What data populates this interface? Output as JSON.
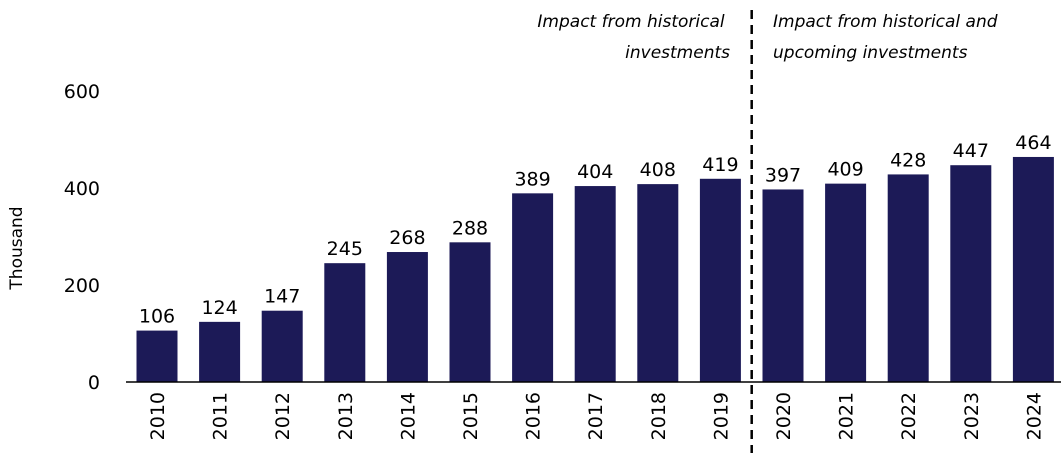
{
  "chart_data": {
    "type": "bar",
    "categories": [
      "2010",
      "2011",
      "2012",
      "2013",
      "2014",
      "2015",
      "2016",
      "2017",
      "2018",
      "2019",
      "2020",
      "2021",
      "2022",
      "2023",
      "2024"
    ],
    "values": [
      106,
      124,
      147,
      245,
      268,
      288,
      389,
      404,
      408,
      419,
      397,
      409,
      428,
      447,
      464
    ],
    "ylabel": "Thousand",
    "xlabel": "",
    "ylim": [
      0,
      600
    ],
    "yticks": [
      0,
      200,
      400,
      600
    ],
    "grid": false,
    "bar_color": "#1c1a57",
    "divider_after": "2019",
    "annotations": {
      "left": [
        "Impact from historical",
        "investments"
      ],
      "right": [
        "Impact from historical and",
        "upcoming investments"
      ]
    }
  }
}
